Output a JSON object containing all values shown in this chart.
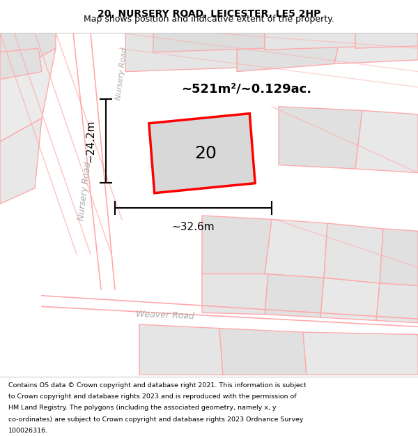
{
  "title": "20, NURSERY ROAD, LEICESTER, LE5 2HP",
  "subtitle": "Map shows position and indicative extent of the property.",
  "footer_lines": [
    "Contains OS data © Crown copyright and database right 2021. This information is subject",
    "to Crown copyright and database rights 2023 and is reproduced with the permission of",
    "HM Land Registry. The polygons (including the associated geometry, namely x, y",
    "co-ordinates) are subject to Crown copyright and database rights 2023 Ordnance Survey",
    "100026316."
  ],
  "area_label": "~521m²/~0.129ac.",
  "property_number": "20",
  "dim_width": "~32.6m",
  "dim_height": "~24.2m",
  "road1_label": "Nursery Road",
  "road2_label": "Weaver Road",
  "outline_color": "#ff0000",
  "building_fill": "#d8d8d8",
  "road_line_color": "#ffaaaa",
  "parcel_colors": [
    "#e0e0e0",
    "#e5e5e5",
    "#e8e8e8",
    "#ebebeb",
    "#dddddd"
  ],
  "title_fontsize": 10,
  "subtitle_fontsize": 9,
  "footer_fontsize": 6.8
}
